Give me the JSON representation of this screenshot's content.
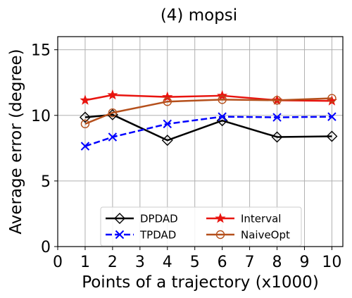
{
  "chart_data": {
    "type": "line",
    "title": "(4) mopsi",
    "xlabel": "Points of a trajectory (x1000)",
    "ylabel": "Average error (degree)",
    "xlim": [
      0,
      10.4
    ],
    "ylim": [
      0,
      16
    ],
    "xticks": [
      0,
      1,
      2,
      3,
      4,
      5,
      6,
      7,
      8,
      9,
      10
    ],
    "yticks": [
      0,
      5,
      10,
      15
    ],
    "grid": true,
    "legend_position": "lower-center",
    "x": [
      1,
      2,
      4,
      6,
      8,
      10
    ],
    "series": [
      {
        "name": "DPDAD",
        "color": "#000000",
        "dash": "solid",
        "marker": "diamond",
        "values": [
          9.85,
          10.05,
          8.1,
          9.6,
          8.35,
          8.4
        ]
      },
      {
        "name": "TPDAD",
        "color": "#0000ff",
        "dash": "dashed",
        "marker": "x",
        "values": [
          7.65,
          8.35,
          9.35,
          9.9,
          9.85,
          9.9
        ]
      },
      {
        "name": "Interval",
        "color": "#e8140f",
        "dash": "solid",
        "marker": "star",
        "values": [
          11.15,
          11.55,
          11.4,
          11.5,
          11.15,
          11.1
        ]
      },
      {
        "name": "NaiveOpt",
        "color": "#b5501c",
        "dash": "solid",
        "marker": "circle",
        "values": [
          9.35,
          10.2,
          11.05,
          11.2,
          11.15,
          11.3
        ]
      }
    ]
  }
}
